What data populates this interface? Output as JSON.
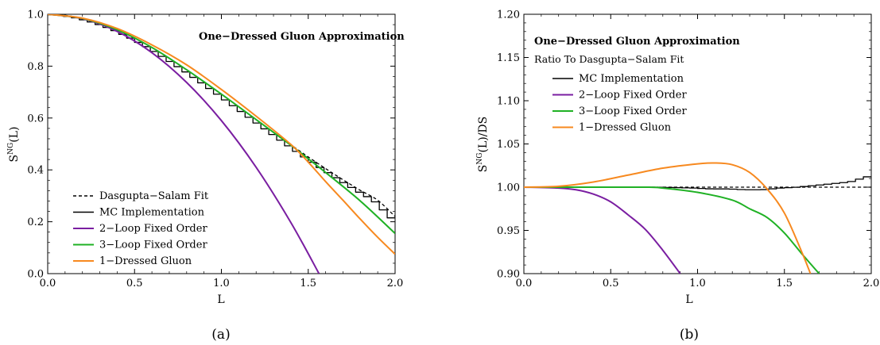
{
  "chart_data": [
    {
      "type": "line",
      "panel_label": "(a)",
      "title": "One−Dressed Gluon Approximation",
      "xlabel": "L",
      "ylabel": {
        "base": "S",
        "sup": "NG",
        "tail": "(L)"
      },
      "xlim": [
        0.0,
        2.0
      ],
      "ylim": [
        0.0,
        1.0
      ],
      "xticks": [
        "0.0",
        "0.5",
        "1.0",
        "1.5",
        "2.0"
      ],
      "yticks": [
        "0.0",
        "0.2",
        "0.4",
        "0.6",
        "0.8",
        "1.0"
      ],
      "legend_position": "left-center",
      "series": [
        {
          "name": "Dasgupta−Salam Fit",
          "color": "#000000",
          "style": "dashed",
          "x": [
            0,
            0.1,
            0.2,
            0.3,
            0.4,
            0.5,
            0.6,
            0.7,
            0.8,
            0.9,
            1.0,
            1.1,
            1.2,
            1.3,
            1.4,
            1.5,
            1.6,
            1.7,
            1.8,
            1.9,
            2.0
          ],
          "y": [
            1.0,
            0.996,
            0.984,
            0.965,
            0.94,
            0.908,
            0.872,
            0.83,
            0.786,
            0.74,
            0.692,
            0.643,
            0.594,
            0.545,
            0.497,
            0.45,
            0.405,
            0.362,
            0.321,
            0.283,
            0.22
          ]
        },
        {
          "name": "MC Implementation",
          "color": "#000000",
          "style": "step",
          "x": [
            0,
            0.1,
            0.2,
            0.3,
            0.4,
            0.5,
            0.6,
            0.7,
            0.8,
            0.9,
            1.0,
            1.1,
            1.2,
            1.3,
            1.4,
            1.5,
            1.6,
            1.7,
            1.8,
            1.9,
            2.0
          ],
          "y": [
            1.0,
            0.996,
            0.984,
            0.965,
            0.94,
            0.908,
            0.872,
            0.83,
            0.786,
            0.74,
            0.692,
            0.643,
            0.594,
            0.545,
            0.497,
            0.45,
            0.405,
            0.362,
            0.321,
            0.283,
            0.215
          ]
        },
        {
          "name": "2−Loop Fixed Order",
          "color": "#7a1ea1",
          "style": "solid",
          "x": [
            0,
            0.2,
            0.4,
            0.6,
            0.8,
            1.0,
            1.2,
            1.4,
            1.562
          ],
          "y": [
            1.0,
            0.983,
            0.934,
            0.852,
            0.737,
            0.59,
            0.41,
            0.197,
            0.0
          ]
        },
        {
          "name": "3−Loop Fixed Order",
          "color": "#1fb124",
          "style": "solid",
          "x": [
            0,
            0.2,
            0.4,
            0.6,
            0.8,
            1.0,
            1.2,
            1.4,
            1.5,
            1.6,
            1.8,
            2.0
          ],
          "y": [
            1.0,
            0.984,
            0.94,
            0.872,
            0.786,
            0.692,
            0.594,
            0.495,
            0.443,
            0.39,
            0.28,
            0.155
          ]
        },
        {
          "name": "1−Dressed Gluon",
          "color": "#f7891f",
          "style": "solid",
          "x": [
            0,
            0.2,
            0.4,
            0.6,
            0.8,
            1.0,
            1.2,
            1.4,
            1.5,
            1.6,
            1.7,
            1.8,
            1.9,
            2.0
          ],
          "y": [
            1.0,
            0.985,
            0.945,
            0.882,
            0.805,
            0.71,
            0.607,
            0.498,
            0.43,
            0.355,
            0.283,
            0.21,
            0.14,
            0.075
          ]
        }
      ]
    },
    {
      "type": "line",
      "panel_label": "(b)",
      "title": "One−Dressed Gluon Approximation",
      "subtitle": "Ratio To Dasgupta−Salam Fit",
      "xlabel": "L",
      "ylabel": {
        "base": "S",
        "sup": "NG",
        "tail": "(L)/DS"
      },
      "xlim": [
        0.0,
        2.0
      ],
      "ylim": [
        0.9,
        1.2
      ],
      "xticks": [
        "0.0",
        "0.5",
        "1.0",
        "1.5",
        "2.0"
      ],
      "yticks": [
        "0.90",
        "0.95",
        "1.00",
        "1.05",
        "1.10",
        "1.15",
        "1.20"
      ],
      "legend_position": "right-upper",
      "series": [
        {
          "name": "Dasgupta−Salam Fit",
          "color": "#000000",
          "style": "dashed",
          "legend": false,
          "x": [
            0,
            2.0
          ],
          "y": [
            1.0,
            1.0
          ]
        },
        {
          "name": "MC Implementation",
          "color": "#000000",
          "style": "step",
          "x": [
            0,
            0.2,
            0.4,
            0.6,
            0.8,
            1.0,
            1.1,
            1.2,
            1.3,
            1.4,
            1.5,
            1.6,
            1.7,
            1.8,
            1.9,
            2.0
          ],
          "y": [
            1.0,
            1.0,
            1.0,
            1.0,
            1.0,
            0.999,
            0.998,
            0.998,
            0.997,
            0.997,
            0.999,
            1.0,
            1.002,
            1.004,
            1.006,
            1.012
          ]
        },
        {
          "name": "2−Loop Fixed Order",
          "color": "#7a1ea1",
          "style": "solid",
          "x": [
            0,
            0.2,
            0.3,
            0.4,
            0.5,
            0.6,
            0.7,
            0.8,
            0.9
          ],
          "y": [
            1.0,
            0.999,
            0.997,
            0.992,
            0.983,
            0.968,
            0.951,
            0.927,
            0.9
          ]
        },
        {
          "name": "3−Loop Fixed Order",
          "color": "#1fb124",
          "style": "solid",
          "x": [
            0,
            0.4,
            0.7,
            0.8,
            1.0,
            1.2,
            1.3,
            1.4,
            1.5,
            1.6,
            1.7
          ],
          "y": [
            1.0,
            1.0,
            1.0,
            0.999,
            0.994,
            0.985,
            0.975,
            0.965,
            0.947,
            0.923,
            0.9
          ]
        },
        {
          "name": "1−Dressed Gluon",
          "color": "#f7891f",
          "style": "solid",
          "x": [
            0,
            0.2,
            0.4,
            0.6,
            0.8,
            1.0,
            1.1,
            1.2,
            1.3,
            1.4,
            1.5,
            1.6,
            1.65
          ],
          "y": [
            1.0,
            1.001,
            1.006,
            1.014,
            1.022,
            1.027,
            1.028,
            1.026,
            1.017,
            0.998,
            0.97,
            0.925,
            0.9
          ]
        }
      ]
    }
  ]
}
